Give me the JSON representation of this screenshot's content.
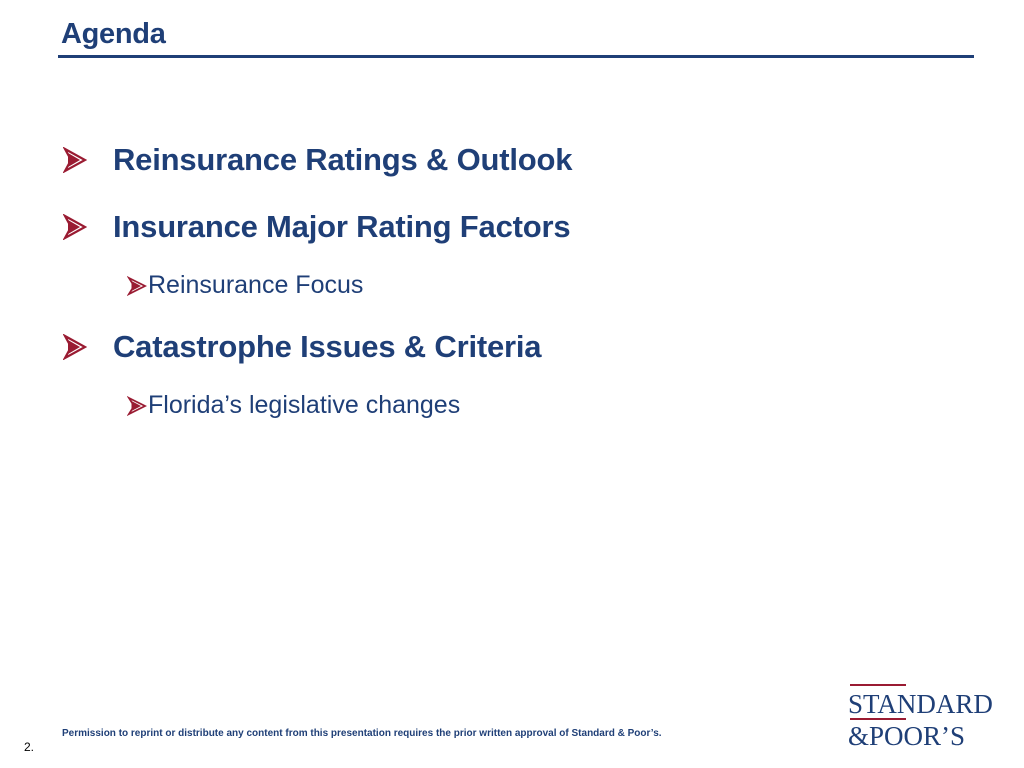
{
  "slide": {
    "title": "Agenda",
    "items": [
      {
        "level": 1,
        "text": "Reinsurance Ratings & Outlook"
      },
      {
        "level": 1,
        "text": "Insurance Major Rating Factors"
      },
      {
        "level": 2,
        "text": "Reinsurance Focus"
      },
      {
        "level": 1,
        "text": "Catastrophe Issues & Criteria"
      },
      {
        "level": 2,
        "text": "Florida’s legislative changes"
      }
    ],
    "footer_note": "Permission to reprint or distribute any content from this presentation requires the prior written approval of Standard & Poor’s.",
    "page_number": "2.",
    "logo": {
      "line1": "STANDARD",
      "line2": "&POOR’S"
    }
  },
  "colors": {
    "title": "#1f3f77",
    "bullet_arrow": "#9a1b32",
    "text": "#1f3f77",
    "logo_rule": "#9a1b32"
  },
  "icons": {
    "bullet": "arrow-bullet-icon"
  }
}
